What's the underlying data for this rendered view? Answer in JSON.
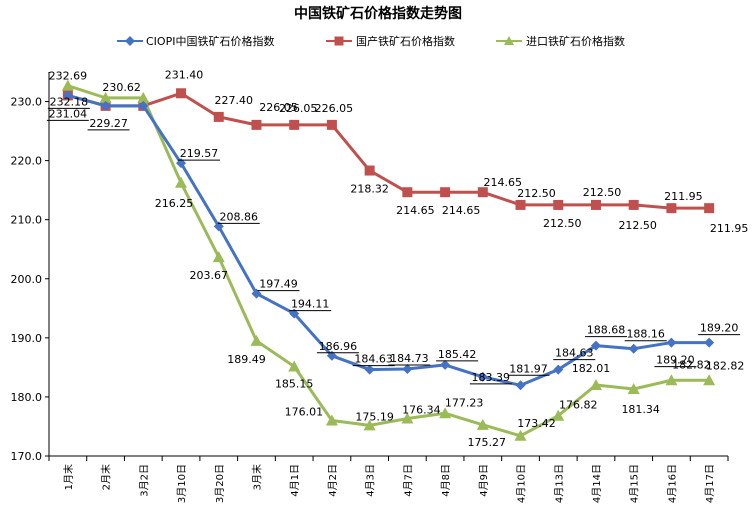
{
  "chart_data": {
    "type": "line",
    "title": "中国铁矿石价格指数走势图",
    "categories": [
      "1月末",
      "2月末",
      "3月2日",
      "3月10日",
      "3月20日",
      "3月末",
      "4月1日",
      "4月2日",
      "4月3日",
      "4月7日",
      "4月8日",
      "4月9日",
      "4月10日",
      "4月13日",
      "4月14日",
      "4月15日",
      "4月16日",
      "4月17日"
    ],
    "ylim": [
      170,
      235
    ],
    "yticks": [
      "170.0",
      "180.0",
      "190.0",
      "200.0",
      "210.0",
      "220.0",
      "230.0"
    ],
    "grid": false,
    "legend_position": "top",
    "series": [
      {
        "name": "CIOPI中国铁矿石价格指数",
        "color": "#4472C4",
        "marker": "diamond",
        "values": [
          231.04,
          229.27,
          229.27,
          219.57,
          208.86,
          197.49,
          194.11,
          186.96,
          184.63,
          184.73,
          185.42,
          183.39,
          181.97,
          184.63,
          188.68,
          188.16,
          189.2,
          189.2
        ],
        "labels": [
          "231.04",
          "229.27",
          "",
          "219.57",
          "208.86",
          "197.49",
          "194.11",
          "186.96",
          "184.63",
          "184.73",
          "185.42",
          "183.39",
          "181.97",
          "184.63",
          "188.68",
          "188.16",
          "189.20",
          "189.20"
        ]
      },
      {
        "name": "国产铁矿石价格指数",
        "color": "#C0504D",
        "marker": "square",
        "values": [
          231.04,
          229.27,
          229.27,
          231.4,
          227.4,
          226.05,
          226.05,
          226.05,
          218.32,
          214.65,
          214.65,
          214.65,
          212.5,
          212.5,
          212.5,
          212.5,
          211.95,
          211.95
        ],
        "labels": [
          "",
          "",
          "",
          "231.40",
          "227.40",
          "226.05",
          "226.05",
          "226.05",
          "218.32",
          "214.65",
          "214.65",
          "214.65",
          "212.50",
          "212.50",
          "212.50",
          "212.50",
          "211.95",
          "211.95"
        ]
      },
      {
        "name": "进口铁矿石价格指数",
        "color": "#9BBB59",
        "marker": "triangle",
        "values": [
          232.69,
          230.62,
          230.62,
          216.25,
          203.67,
          189.49,
          185.15,
          176.01,
          175.19,
          176.34,
          177.23,
          175.27,
          173.42,
          176.82,
          182.01,
          181.34,
          182.82,
          182.82
        ],
        "labels": [
          "232.69",
          "230.62",
          "",
          "216.25",
          "203.67",
          "189.49",
          "185.15",
          "176.01",
          "175.19",
          "176.34",
          "177.23",
          "175.27",
          "173.42",
          "176.82",
          "182.01",
          "181.34",
          "182.82",
          "182.82"
        ]
      }
    ],
    "extra_labels": [
      "232.18"
    ]
  }
}
